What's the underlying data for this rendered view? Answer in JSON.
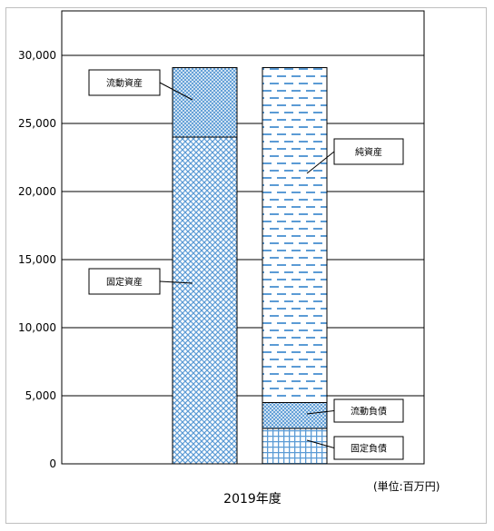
{
  "chart_data": {
    "type": "bar",
    "stacked": true,
    "categories": [
      "2019年度"
    ],
    "ylim": [
      0,
      30000
    ],
    "yticks": [
      0,
      5000,
      10000,
      15000,
      20000,
      25000,
      30000
    ],
    "ytick_labels": [
      "0",
      "5,000",
      "10,000",
      "15,000",
      "20,000",
      "25,000",
      "30,000"
    ],
    "grid": true,
    "unit_note": "(単位:百万円)",
    "stacks": [
      {
        "name": "assets",
        "segments": [
          {
            "label": "固定資産",
            "value": 24000,
            "pattern": "crosshatch"
          },
          {
            "label": "流動資産",
            "value": 5100,
            "pattern": "dense-crosshatch"
          }
        ]
      },
      {
        "name": "liabilities-and-equity",
        "segments": [
          {
            "label": "固定負債",
            "value": 2600,
            "pattern": "grid"
          },
          {
            "label": "流動負債",
            "value": 1900,
            "pattern": "dense-crosshatch"
          },
          {
            "label": "純資産",
            "value": 24600,
            "pattern": "dashes"
          }
        ]
      }
    ],
    "colors": {
      "pattern": "#5b9bd5",
      "outline": "#000000",
      "grid": "#000000"
    }
  }
}
